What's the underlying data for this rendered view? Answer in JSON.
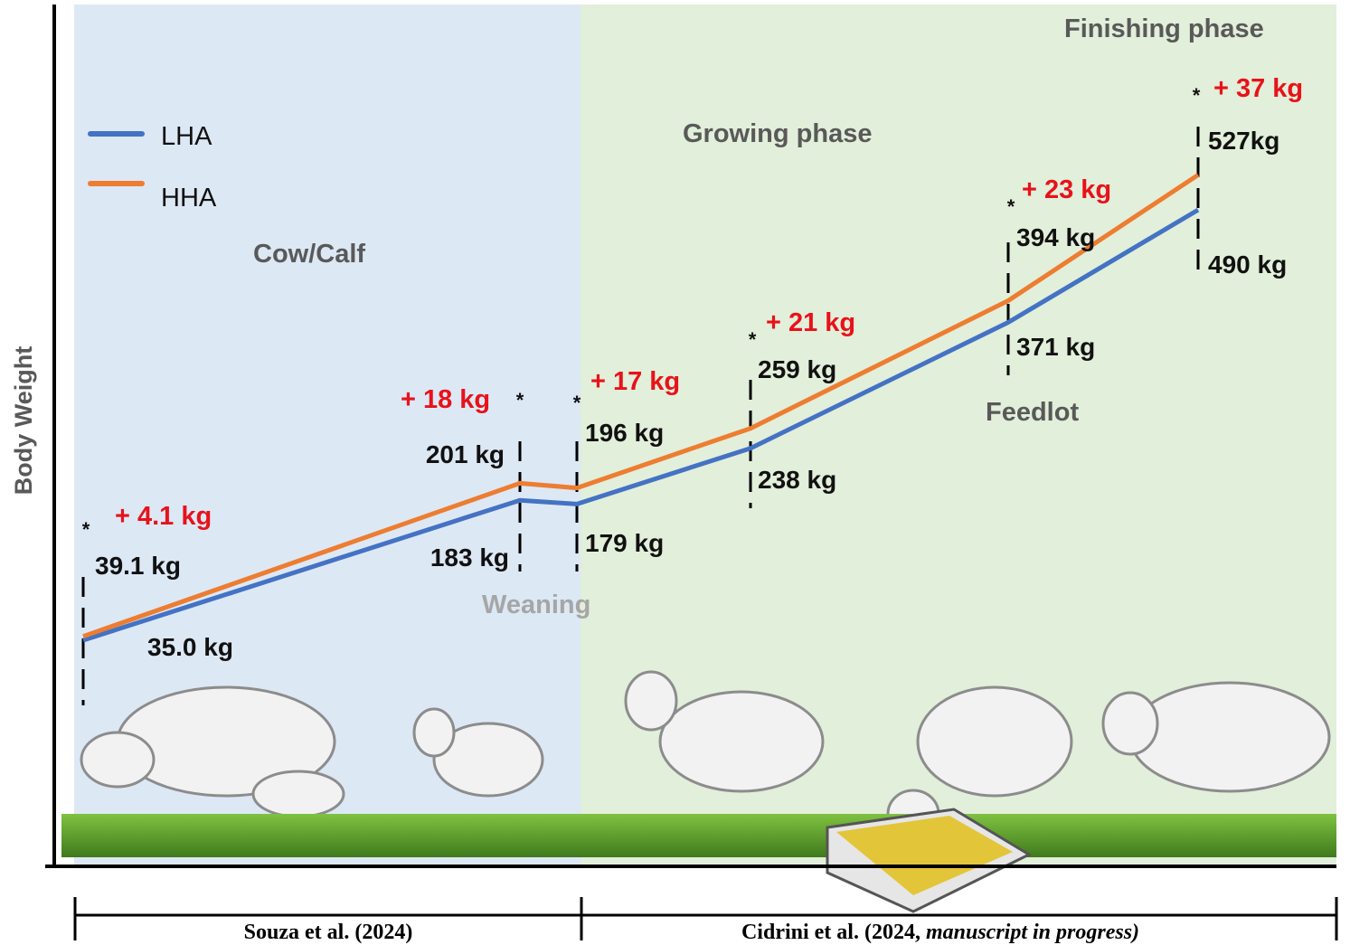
{
  "chart_data": {
    "type": "line",
    "ylabel": "Body Weight",
    "categories": [
      null,
      null,
      null,
      null,
      null,
      null
    ],
    "series": [
      {
        "name": "LHA",
        "color": "#4472c4",
        "values": [
          35.0,
          183,
          179,
          238,
          371,
          490
        ],
        "value_labels": [
          "35.0 kg",
          "183 kg",
          "179 kg",
          "238 kg",
          "371 kg",
          "490 kg"
        ]
      },
      {
        "name": "HHA",
        "color": "#ed7d31",
        "values": [
          39.1,
          201,
          196,
          259,
          394,
          527
        ],
        "value_labels": [
          "39.1 kg",
          "201 kg",
          "196 kg",
          "259 kg",
          "394 kg",
          "527kg"
        ]
      }
    ],
    "annotations": [
      "+ 4.1 kg",
      "+ 18 kg",
      "+ 17 kg",
      "+ 21 kg",
      "+ 23 kg",
      "+ 37 kg"
    ],
    "significance": [
      "*",
      "*",
      "*",
      "*",
      "*",
      "*"
    ],
    "phases": [
      "Cow/Calf",
      "Weaning",
      "Growing phase",
      "Feedlot",
      "Finishing phase"
    ],
    "references": [
      {
        "text": "Souza et al. (2024)"
      },
      {
        "text": "Cidrini et al. (2024, ",
        "italic": "manuscript in progress)"
      }
    ]
  }
}
